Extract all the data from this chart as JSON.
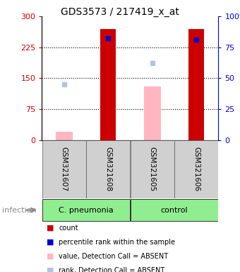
{
  "title": "GDS3573 / 217419_x_at",
  "samples": [
    "GSM321607",
    "GSM321608",
    "GSM321605",
    "GSM321606"
  ],
  "count_values": [
    null,
    270,
    null,
    270
  ],
  "count_color": "#cc0000",
  "percentile_values": [
    null,
    82,
    null,
    81
  ],
  "percentile_color": "#0000cc",
  "value_absent": [
    20,
    null,
    130,
    null
  ],
  "value_absent_color": "#ffb6c1",
  "rank_absent": [
    45,
    null,
    62,
    null
  ],
  "rank_absent_color": "#b0c4de",
  "ylim_left": [
    0,
    300
  ],
  "ylim_right": [
    0,
    100
  ],
  "yticks_left": [
    0,
    75,
    150,
    225,
    300
  ],
  "yticks_right": [
    0,
    25,
    50,
    75,
    100
  ],
  "left_axis_color": "#cc0000",
  "right_axis_color": "#0000cc",
  "bar_width": 0.35,
  "group_defs": [
    {
      "name": "C. pneumonia",
      "start": 0,
      "end": 1,
      "color": "#90ee90"
    },
    {
      "name": "control",
      "start": 2,
      "end": 3,
      "color": "#90ee90"
    }
  ],
  "legend_items": [
    {
      "label": "count",
      "color": "#cc0000"
    },
    {
      "label": "percentile rank within the sample",
      "color": "#0000cc"
    },
    {
      "label": "value, Detection Call = ABSENT",
      "color": "#ffb6c1"
    },
    {
      "label": "rank, Detection Call = ABSENT",
      "color": "#b0c4de"
    }
  ]
}
